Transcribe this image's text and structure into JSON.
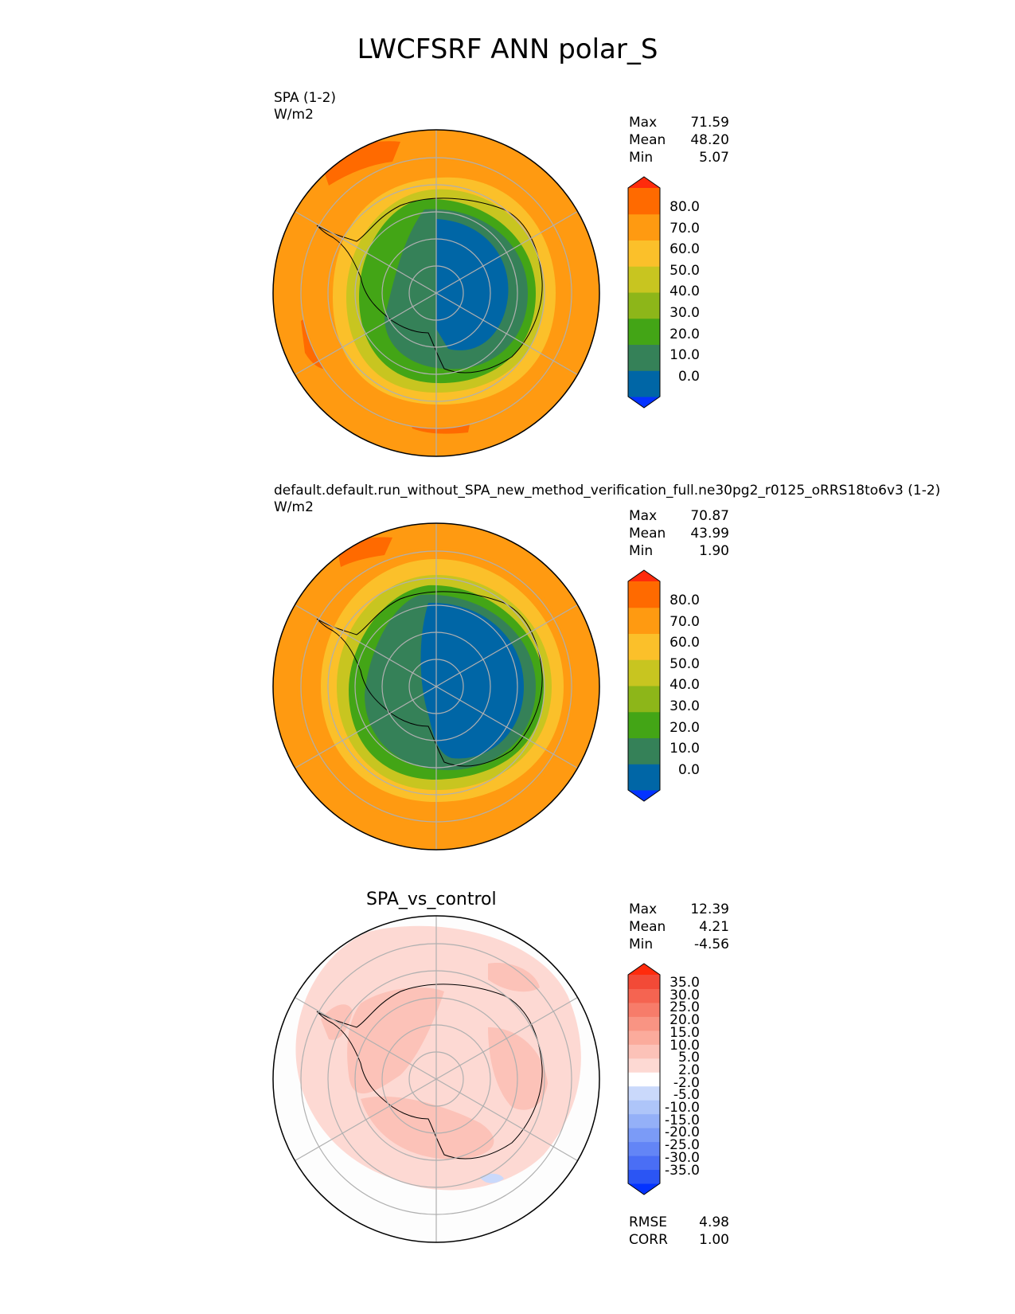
{
  "title": "LWCFSRF ANN polar_S",
  "panels": [
    {
      "id": "test",
      "label1": "SPA (1-2)",
      "label2": "W/m2",
      "stats": [
        {
          "k": "Max",
          "v": "71.59"
        },
        {
          "k": "Mean",
          "v": "48.20"
        },
        {
          "k": "Min",
          "v": "5.07"
        }
      ],
      "cbar_ticks": [
        "80.0",
        "70.0",
        "60.0",
        "50.0",
        "40.0",
        "30.0",
        "20.0",
        "10.0",
        "0.0"
      ]
    },
    {
      "id": "ref",
      "label1": "default.default.run_without_SPA_new_method_verification_full.ne30pg2_r0125_oRRS18to6v3 (1-2)",
      "label2": "W/m2",
      "stats": [
        {
          "k": "Max",
          "v": "70.87"
        },
        {
          "k": "Mean",
          "v": "43.99"
        },
        {
          "k": "Min",
          "v": "1.90"
        }
      ],
      "cbar_ticks": [
        "80.0",
        "70.0",
        "60.0",
        "50.0",
        "40.0",
        "30.0",
        "20.0",
        "10.0",
        "0.0"
      ]
    },
    {
      "id": "diff",
      "title": "SPA_vs_control",
      "stats": [
        {
          "k": "Max",
          "v": "12.39"
        },
        {
          "k": "Mean",
          "v": "4.21"
        },
        {
          "k": "Min",
          "v": "-4.56"
        }
      ],
      "cbar_ticks": [
        "35.0",
        "30.0",
        "25.0",
        "20.0",
        "15.0",
        "10.0",
        "5.0",
        "2.0",
        "-2.0",
        "-5.0",
        "-10.0",
        "-15.0",
        "-20.0",
        "-25.0",
        "-30.0",
        "-35.0"
      ],
      "metrics": [
        {
          "k": "RMSE",
          "v": "4.98"
        },
        {
          "k": "CORR",
          "v": "1.00"
        }
      ]
    }
  ],
  "colors": {
    "abs_levels": [
      "#0433ff",
      "#0066a6",
      "#358158",
      "#43a516",
      "#8db619",
      "#c8c520",
      "#fbc02a",
      "#ff9a11",
      "#ff6a00",
      "#ff2b0c"
    ],
    "diff_levels": [
      "#0433ff",
      "#2b55f4",
      "#4a6ef5",
      "#6385f6",
      "#7b9bf7",
      "#94b0f8",
      "#aec5f9",
      "#cad9fb",
      "#ffffff",
      "#fdd9d3",
      "#fcc2b8",
      "#fbab9c",
      "#f99483",
      "#f77c6a",
      "#f56451",
      "#f24a37",
      "#ff2b0c"
    ]
  },
  "chart_data": [
    {
      "type": "heatmap",
      "projection": "south-polar-stereographic",
      "title": "SPA (1-2)",
      "units": "W/m2",
      "max": 71.59,
      "mean": 48.2,
      "min": 5.07,
      "levels": [
        0,
        10,
        20,
        30,
        40,
        50,
        60,
        70,
        80
      ]
    },
    {
      "type": "heatmap",
      "projection": "south-polar-stereographic",
      "title": "default.default.run_without_SPA_new_method_verification_full.ne30pg2_r0125_oRRS18to6v3 (1-2)",
      "units": "W/m2",
      "max": 70.87,
      "mean": 43.99,
      "min": 1.9,
      "levels": [
        0,
        10,
        20,
        30,
        40,
        50,
        60,
        70,
        80
      ]
    },
    {
      "type": "heatmap",
      "projection": "south-polar-stereographic",
      "title": "SPA_vs_control",
      "max": 12.39,
      "mean": 4.21,
      "min": -4.56,
      "rmse": 4.98,
      "corr": 1.0,
      "levels": [
        -35,
        -30,
        -25,
        -20,
        -15,
        -10,
        -5,
        -2,
        2,
        5,
        10,
        15,
        20,
        25,
        30,
        35
      ]
    }
  ]
}
